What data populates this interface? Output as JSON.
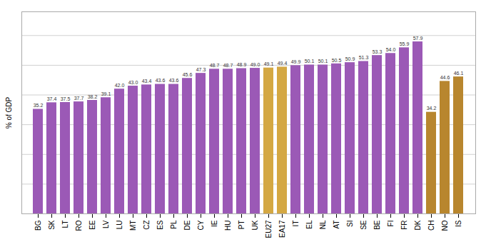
{
  "chart_data": {
    "type": "bar",
    "ylabel": "% of GDP",
    "categories": [
      "BG",
      "SK",
      "LT",
      "RO",
      "EE",
      "LV",
      "LU",
      "MT",
      "CZ",
      "ES",
      "PL",
      "DE",
      "CY",
      "IE",
      "HU",
      "PT",
      "UK",
      "EU27",
      "EA17",
      "IT",
      "EL",
      "NL",
      "AT",
      "SI",
      "SE",
      "BE",
      "FI",
      "FR",
      "DK",
      "CH",
      "NO",
      "IS"
    ],
    "values": [
      35.2,
      37.4,
      37.5,
      37.7,
      38.2,
      39.1,
      42.0,
      43.0,
      43.4,
      43.6,
      43.6,
      45.6,
      47.3,
      48.7,
      48.7,
      48.9,
      49.0,
      49.1,
      49.4,
      49.9,
      50.1,
      50.1,
      50.5,
      50.9,
      51.3,
      53.3,
      54.0,
      55.9,
      57.9,
      34.2,
      44.6,
      46.1
    ],
    "value_labels": [
      "35.2",
      "37.4",
      "37.5",
      "37.7",
      "38.2",
      "39.1",
      "42.0",
      "43.0",
      "43.4",
      "43.6",
      "43.6",
      "45.6",
      "47.3",
      "48.7",
      "48.7",
      "48.9",
      "49.0",
      "49.1",
      "49.4",
      "49.9",
      "50.1",
      "50.1",
      "50.5",
      "50.9",
      "51.3",
      "53.3",
      "54.0",
      "55.9",
      "57.9",
      "34.2",
      "44.6",
      "46.1"
    ],
    "colors": [
      "#9b59b6",
      "#9b59b6",
      "#9b59b6",
      "#9b59b6",
      "#9b59b6",
      "#9b59b6",
      "#9b59b6",
      "#9b59b6",
      "#9b59b6",
      "#9b59b6",
      "#9b59b6",
      "#9b59b6",
      "#9b59b6",
      "#9b59b6",
      "#9b59b6",
      "#9b59b6",
      "#9b59b6",
      "#d4a843",
      "#d4a843",
      "#9b59b6",
      "#9b59b6",
      "#9b59b6",
      "#9b59b6",
      "#9b59b6",
      "#9b59b6",
      "#9b59b6",
      "#9b59b6",
      "#9b59b6",
      "#9b59b6",
      "#b8862e",
      "#b8862e",
      "#b8862e"
    ],
    "ylim": [
      0,
      68
    ],
    "yticks": [
      0,
      10,
      20,
      30,
      40,
      50,
      60
    ],
    "grid": true,
    "data_labels": true,
    "tick_labels": "x"
  }
}
